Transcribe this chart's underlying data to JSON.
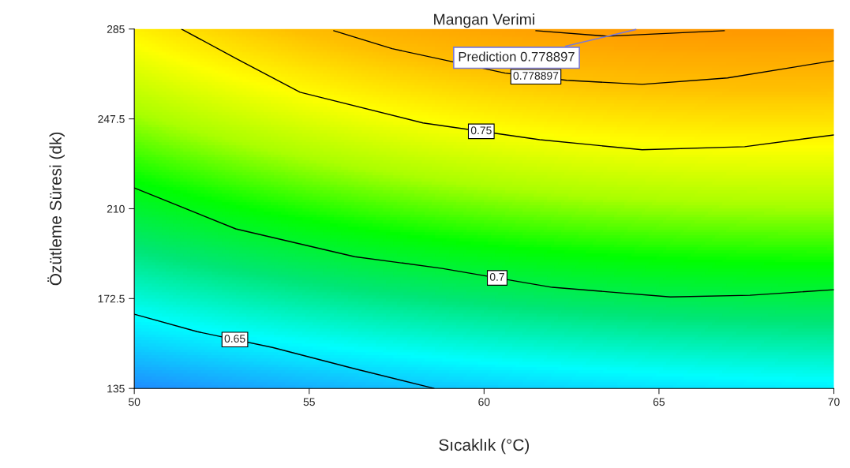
{
  "chart_data": {
    "type": "line",
    "title": "Mangan Verimi",
    "xlabel": "Sıcaklık (°C)",
    "ylabel": "Özütleme Süresi (dk)",
    "series": [
      {
        "name": "0.65",
        "color": "#000000",
        "x": [
          50,
          51.8,
          53.95,
          56.3,
          58.57
        ],
        "values": [
          166,
          158.7,
          152.1,
          143.2,
          135
        ]
      },
      {
        "name": "0.7",
        "color": "#000000",
        "x": [
          50,
          52.9,
          56.3,
          58.8,
          61.95,
          65.33,
          67.6,
          70
        ],
        "values": [
          218.7,
          201.6,
          190.0,
          185.1,
          177.2,
          173.2,
          173.9,
          176.2
        ]
      },
      {
        "name": "0.75",
        "color": "#000000",
        "x": [
          51.35,
          52.93,
          54.74,
          58.25,
          61.59,
          64.52,
          67.45,
          70
        ],
        "values": [
          285,
          272.5,
          258.6,
          245.8,
          238.8,
          234.6,
          235.9,
          240.8
        ]
      },
      {
        "name": "0.778897",
        "color": "#000000",
        "x": [
          55.7,
          57.37,
          60.6,
          62.36,
          64.52,
          66.96,
          70
        ],
        "values": [
          284.3,
          276.8,
          266.6,
          263.6,
          261.9,
          264.6,
          271.8
        ]
      },
      {
        "color": "#000000",
        "x": [
          61.48,
          63.53,
          66.87
        ],
        "values": [
          284.3,
          282.0,
          284.3
        ]
      }
    ],
    "annotations": [
      "Prediction 0.778897"
    ],
    "xlim": [
      50,
      70
    ],
    "xticks": [
      50,
      55,
      60,
      65,
      70
    ],
    "ylim": [
      135,
      285
    ],
    "yticks": [
      135,
      172.5,
      210,
      247.5,
      285
    ],
    "grid": false,
    "legend": false,
    "marker": "none",
    "line_style": "solid"
  }
}
